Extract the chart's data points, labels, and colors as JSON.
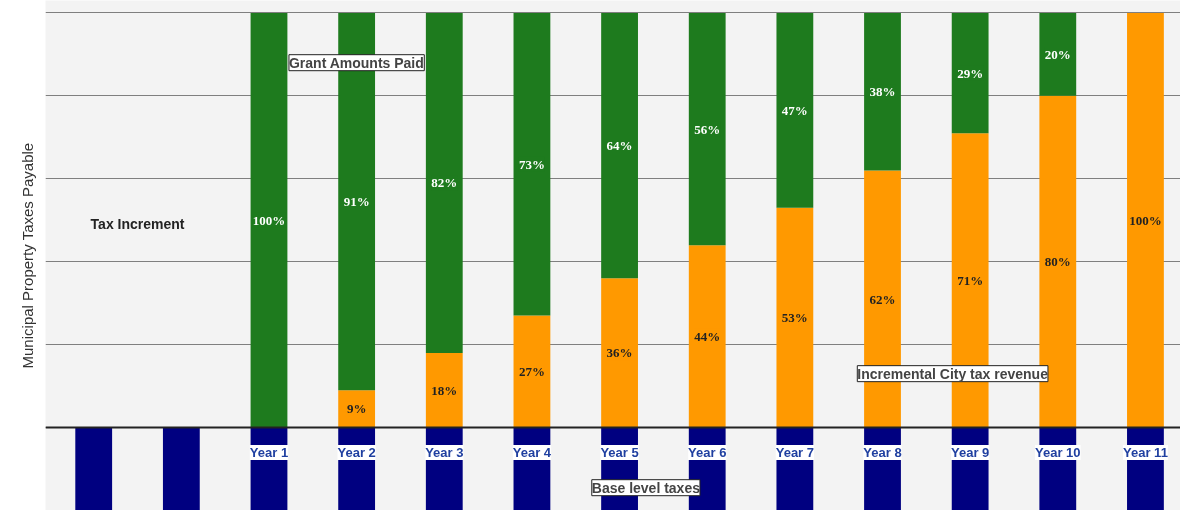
{
  "chart_data": {
    "type": "bar",
    "stacked": true,
    "ylabel": "Municipal Property Taxes Payable",
    "categories": [
      null,
      null,
      "Year 1",
      "Year 2",
      "Year 3",
      "Year 4",
      "Year 5",
      "Year 6",
      "Year 7",
      "Year 8",
      "Year 9",
      "Year 10",
      "Year 11"
    ],
    "series": [
      {
        "name": "Incremental City tax revenue",
        "color": "#ff9900",
        "values": [
          null,
          null,
          null,
          9,
          18,
          27,
          36,
          44,
          53,
          62,
          71,
          80,
          100
        ],
        "value_labels": [
          null,
          null,
          null,
          "9%",
          "18%",
          "27%",
          "36%",
          "44%",
          "53%",
          "62%",
          "71%",
          "80%",
          "100%"
        ]
      },
      {
        "name": "Grant Amounts Paid",
        "color": "#1e7b1e",
        "values": [
          null,
          null,
          100,
          91,
          82,
          73,
          64,
          56,
          47,
          38,
          29,
          20,
          null
        ],
        "value_labels": [
          null,
          null,
          "100%",
          "91%",
          "82%",
          "73%",
          "64%",
          "56%",
          "47%",
          "38%",
          "29%",
          "20%",
          null
        ]
      },
      {
        "name": "Base level taxes",
        "color": "#000080",
        "values": [
          -20,
          -20,
          -20,
          -20,
          -20,
          -20,
          -20,
          -20,
          -20,
          -20,
          -20,
          -20,
          -20
        ]
      }
    ],
    "annotations": [
      "Tax Increment"
    ],
    "ylim": [
      -20,
      103
    ],
    "yticks": [
      {
        "value": 0,
        "label": null
      },
      {
        "value": 20,
        "label": null
      },
      {
        "value": 40,
        "label": null
      },
      {
        "value": 60,
        "label": null
      },
      {
        "value": 80,
        "label": null
      },
      {
        "value": 100,
        "label": null
      }
    ],
    "grid": "y",
    "tick_labels": "x"
  }
}
